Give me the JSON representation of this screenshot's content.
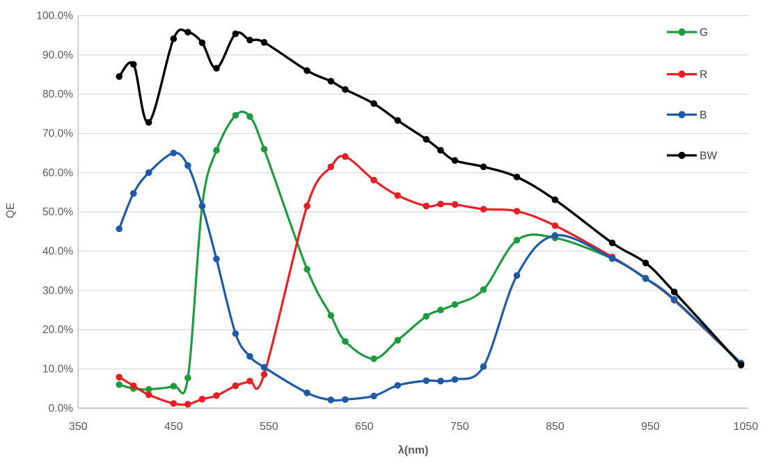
{
  "chart_data": {
    "type": "line",
    "title": "",
    "xlabel": "λ(nm)",
    "ylabel": "QE",
    "xlim": [
      350,
      1050
    ],
    "ylim": [
      0,
      100
    ],
    "grid": "horizontal",
    "legend_position": "top-right-inside",
    "x_ticks": [
      350,
      450,
      550,
      650,
      750,
      850,
      950,
      1050
    ],
    "y_ticks": [
      0,
      10,
      20,
      30,
      40,
      50,
      60,
      70,
      80,
      90,
      100
    ],
    "y_tick_labels": [
      "0.0%",
      "10.0%",
      "20.0%",
      "30.0%",
      "40.0%",
      "50.0%",
      "60.0%",
      "70.0%",
      "80.0%",
      "90.0%",
      "100.0%"
    ],
    "x": [
      393,
      408,
      424,
      450,
      465,
      480,
      495,
      515,
      530,
      545,
      590,
      615,
      630,
      660,
      685,
      715,
      730,
      745,
      775,
      810,
      850,
      910,
      945,
      975,
      1045
    ],
    "series": [
      {
        "name": "G",
        "color": "#1E9C3D",
        "values": [
          6.0,
          5.0,
          4.8,
          5.6,
          7.7,
          51.5,
          65.7,
          74.6,
          74.3,
          66.0,
          35.4,
          23.6,
          17.0,
          12.6,
          17.3,
          23.4,
          25.0,
          26.4,
          30.2,
          42.8,
          43.4,
          38.1,
          33.0,
          27.5,
          11.3
        ]
      },
      {
        "name": "R",
        "color": "#E81E25",
        "values": [
          7.9,
          5.7,
          3.4,
          1.2,
          1.0,
          2.3,
          3.2,
          5.7,
          6.9,
          8.6,
          51.5,
          61.5,
          64.1,
          58.1,
          54.2,
          51.5,
          52.0,
          51.9,
          50.7,
          50.2,
          46.5,
          38.5,
          33.1,
          27.6,
          11.4
        ]
      },
      {
        "name": "B",
        "color": "#1E5AA8",
        "values": [
          45.7,
          54.7,
          60.0,
          65.0,
          61.8,
          51.5,
          38.0,
          19.0,
          13.2,
          10.4,
          3.9,
          2.1,
          2.2,
          3.1,
          5.8,
          7.0,
          6.9,
          7.3,
          10.6,
          33.8,
          44.0,
          38.2,
          33.1,
          27.7,
          11.5
        ]
      },
      {
        "name": "BW",
        "color": "#000000",
        "values": [
          84.5,
          87.6,
          72.8,
          94.1,
          95.8,
          93.1,
          86.6,
          95.4,
          93.8,
          93.2,
          86.0,
          83.3,
          81.2,
          77.6,
          73.3,
          68.5,
          65.7,
          63.1,
          61.5,
          58.9,
          53.1,
          42.1,
          37.0,
          29.6,
          11.0
        ]
      }
    ],
    "legend": [
      "G",
      "R",
      "B",
      "BW"
    ],
    "colors": {
      "gridline": "#D9D9D9",
      "axis_line": "#BFBFBF",
      "tick_text": "#595959",
      "legend_text": "#404040"
    }
  }
}
